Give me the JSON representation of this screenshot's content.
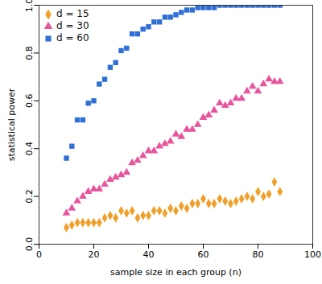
{
  "chart_data": {
    "type": "scatter",
    "x_label": "sample size in each group (n)",
    "y_label": "statistical power",
    "x": [
      10,
      12,
      14,
      16,
      18,
      20,
      22,
      24,
      26,
      28,
      30,
      32,
      34,
      36,
      38,
      40,
      42,
      44,
      46,
      48,
      50,
      52,
      54,
      56,
      58,
      60,
      62,
      64,
      66,
      68,
      70,
      72,
      74,
      76,
      78,
      80,
      82,
      84,
      86,
      88
    ],
    "series": [
      {
        "name": "d = 15",
        "color": "#f0a02a",
        "marker": "diamond",
        "values": [
          0.07,
          0.08,
          0.09,
          0.09,
          0.09,
          0.09,
          0.09,
          0.11,
          0.12,
          0.11,
          0.14,
          0.13,
          0.14,
          0.11,
          0.12,
          0.12,
          0.14,
          0.14,
          0.13,
          0.15,
          0.14,
          0.16,
          0.15,
          0.17,
          0.17,
          0.19,
          0.17,
          0.17,
          0.19,
          0.18,
          0.17,
          0.18,
          0.19,
          0.2,
          0.19,
          0.22,
          0.2,
          0.21,
          0.26,
          0.22
        ]
      },
      {
        "name": "d = 30",
        "color": "#e8559c",
        "marker": "triangle",
        "values": [
          0.13,
          0.15,
          0.18,
          0.2,
          0.22,
          0.23,
          0.23,
          0.25,
          0.27,
          0.28,
          0.29,
          0.3,
          0.34,
          0.35,
          0.37,
          0.39,
          0.39,
          0.41,
          0.42,
          0.43,
          0.46,
          0.45,
          0.48,
          0.48,
          0.5,
          0.53,
          0.54,
          0.56,
          0.59,
          0.58,
          0.59,
          0.61,
          0.61,
          0.64,
          0.66,
          0.64,
          0.67,
          0.69,
          0.68,
          0.68
        ]
      },
      {
        "name": "d = 60",
        "color": "#2f6fd6",
        "marker": "square",
        "values": [
          0.36,
          0.41,
          0.52,
          0.52,
          0.59,
          0.6,
          0.67,
          0.69,
          0.74,
          0.76,
          0.81,
          0.82,
          0.88,
          0.88,
          0.9,
          0.91,
          0.93,
          0.93,
          0.95,
          0.95,
          0.96,
          0.97,
          0.98,
          0.98,
          0.99,
          0.99,
          0.99,
          0.99,
          1.0,
          1.0,
          1.0,
          1.0,
          1.0,
          1.0,
          1.0,
          1.0,
          1.0,
          1.0,
          1.0,
          1.0
        ]
      }
    ],
    "xlim": [
      0,
      100
    ],
    "xticks": [
      0,
      20,
      40,
      60,
      80,
      100
    ],
    "ylim": [
      0,
      1
    ],
    "yticks": [
      {
        "value": 0,
        "label": "0.0"
      },
      {
        "value": 0.2,
        "label": "0.2"
      },
      {
        "value": 0.4,
        "label": "0.4"
      },
      {
        "value": 0.6,
        "label": "0.6"
      },
      {
        "value": 0.8,
        "label": "0.8"
      },
      {
        "value": 1,
        "label": "1.0"
      }
    ],
    "grid": false,
    "legend": "top-left"
  }
}
